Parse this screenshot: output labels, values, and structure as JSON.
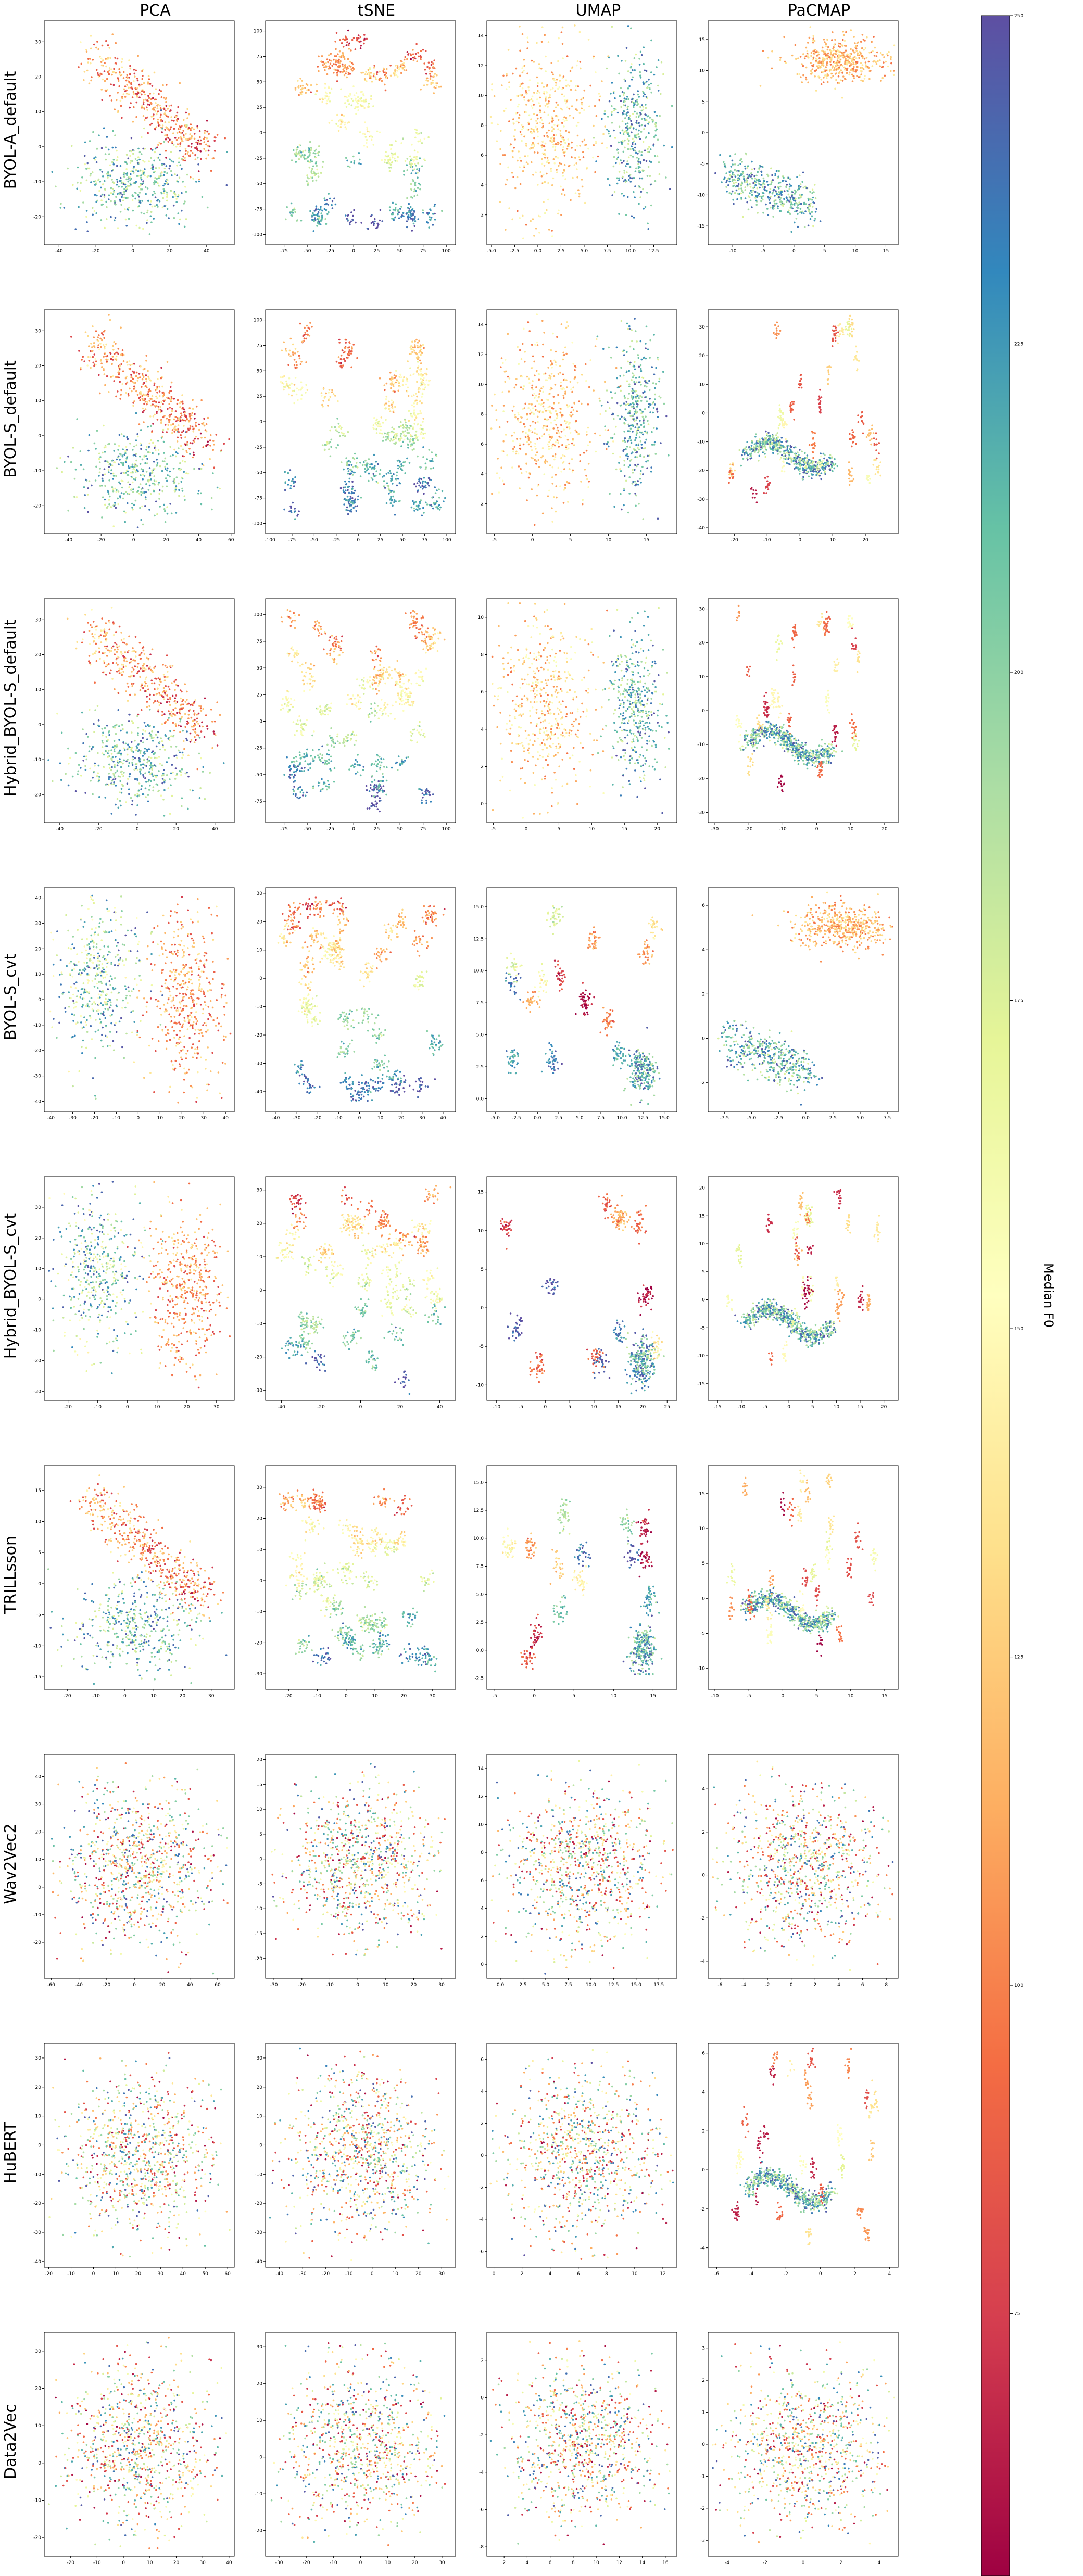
{
  "figure": {
    "column_titles": [
      "PCA",
      "tSNE",
      "UMAP",
      "PaCMAP"
    ],
    "row_labels": [
      "BYOL-A_default",
      "BYOL-S_default",
      "Hybrid_BYOL-S_default",
      "BYOL-S_cvt",
      "Hybrid_BYOL-S_cvt",
      "TRILLsson",
      "Wav2Vec2",
      "HuBERT",
      "Data2Vec"
    ],
    "colorbar": {
      "label": "Median F0",
      "ticks": [
        "250",
        "225",
        "200",
        "175",
        "150",
        "125",
        "100",
        "75"
      ],
      "tick_values": [
        250,
        225,
        200,
        175,
        150,
        125,
        100,
        75
      ],
      "range": [
        55,
        250
      ],
      "colormap": "Spectral",
      "stops": [
        "#9e0142",
        "#d53e4f",
        "#f46d43",
        "#fdae61",
        "#fee08b",
        "#ffffbf",
        "#e6f598",
        "#abdda4",
        "#66c2a5",
        "#3288bd",
        "#5e4fa2"
      ]
    }
  },
  "chart_data": [
    {
      "type": "scatter",
      "method": "PCA",
      "model": "BYOL-A_default",
      "xticks": [
        "-40",
        "-20",
        "0",
        "20",
        "40"
      ],
      "yticks": [
        "30",
        "20",
        "10",
        "0",
        "-10",
        "-20"
      ],
      "xlim": [
        -48,
        55
      ],
      "ylim": [
        -28,
        36
      ],
      "shape": "wedge"
    },
    {
      "type": "scatter",
      "method": "tSNE",
      "model": "BYOL-A_default",
      "xticks": [
        "-75",
        "-50",
        "-25",
        "0",
        "25",
        "50",
        "75",
        "100"
      ],
      "yticks": [
        "100",
        "75",
        "50",
        "25",
        "0",
        "-25",
        "-50",
        "-75",
        "-100"
      ],
      "xlim": [
        -95,
        110
      ],
      "ylim": [
        -110,
        110
      ],
      "shape": "tsne"
    },
    {
      "type": "scatter",
      "method": "UMAP",
      "model": "BYOL-A_default",
      "xticks": [
        "-5.0",
        "-2.5",
        "0.0",
        "2.5",
        "5.0",
        "7.5",
        "10.0",
        "12.5"
      ],
      "yticks": [
        "14",
        "12",
        "10",
        "8",
        "6",
        "4",
        "2"
      ],
      "xlim": [
        -5.5,
        15
      ],
      "ylim": [
        0,
        15
      ],
      "shape": "umap_split"
    },
    {
      "type": "scatter",
      "method": "PaCMAP",
      "model": "BYOL-A_default",
      "xticks": [
        "-10",
        "-5",
        "0",
        "5",
        "10",
        "15"
      ],
      "yticks": [
        "15",
        "10",
        "5",
        "0",
        "-5",
        "-10",
        "-15"
      ],
      "xlim": [
        -14,
        17
      ],
      "ylim": [
        -18,
        18
      ],
      "shape": "pac_two"
    },
    {
      "type": "scatter",
      "method": "PCA",
      "model": "BYOL-S_default",
      "xticks": [
        "-40",
        "-20",
        "0",
        "20",
        "40",
        "60"
      ],
      "yticks": [
        "30",
        "20",
        "10",
        "0",
        "-10",
        "-20"
      ],
      "xlim": [
        -55,
        62
      ],
      "ylim": [
        -28,
        36
      ],
      "shape": "wedge"
    },
    {
      "type": "scatter",
      "method": "tSNE",
      "model": "BYOL-S_default",
      "xticks": [
        "-100",
        "-75",
        "-50",
        "-25",
        "0",
        "25",
        "50",
        "75",
        "100"
      ],
      "yticks": [
        "100",
        "75",
        "50",
        "25",
        "0",
        "-25",
        "-50",
        "-75",
        "-100"
      ],
      "xlim": [
        -105,
        110
      ],
      "ylim": [
        -110,
        110
      ],
      "shape": "tsne"
    },
    {
      "type": "scatter",
      "method": "UMAP",
      "model": "BYOL-S_default",
      "xticks": [
        "-5",
        "0",
        "5",
        "10",
        "15"
      ],
      "yticks": [
        "14",
        "12",
        "10",
        "8",
        "6",
        "4",
        "2"
      ],
      "xlim": [
        -6,
        19
      ],
      "ylim": [
        0,
        15
      ],
      "shape": "umap_split"
    },
    {
      "type": "scatter",
      "method": "PaCMAP",
      "model": "BYOL-S_default",
      "xticks": [
        "-20",
        "-10",
        "0",
        "10",
        "20"
      ],
      "yticks": [
        "30",
        "20",
        "10",
        "0",
        "-10",
        "-20",
        "-30",
        "-40"
      ],
      "xlim": [
        -28,
        30
      ],
      "ylim": [
        -42,
        36
      ],
      "shape": "pac_scatter"
    },
    {
      "type": "scatter",
      "method": "PCA",
      "model": "Hybrid_BYOL-S_default",
      "xticks": [
        "-40",
        "-20",
        "0",
        "20",
        "40"
      ],
      "yticks": [
        "30",
        "20",
        "10",
        "0",
        "-10",
        "-20"
      ],
      "xlim": [
        -48,
        50
      ],
      "ylim": [
        -28,
        36
      ],
      "shape": "wedge"
    },
    {
      "type": "scatter",
      "method": "tSNE",
      "model": "Hybrid_BYOL-S_default",
      "xticks": [
        "-75",
        "-50",
        "-25",
        "0",
        "25",
        "50",
        "75",
        "100"
      ],
      "yticks": [
        "100",
        "75",
        "50",
        "25",
        "0",
        "-25",
        "-50",
        "-75"
      ],
      "xlim": [
        -95,
        110
      ],
      "ylim": [
        -95,
        115
      ],
      "shape": "tsne"
    },
    {
      "type": "scatter",
      "method": "UMAP",
      "model": "Hybrid_BYOL-S_default",
      "xticks": [
        "-5",
        "0",
        "5",
        "10",
        "15",
        "20"
      ],
      "yticks": [
        "10",
        "8",
        "6",
        "4",
        "2",
        "0"
      ],
      "xlim": [
        -6,
        23
      ],
      "ylim": [
        -1,
        11
      ],
      "shape": "umap_split"
    },
    {
      "type": "scatter",
      "method": "PaCMAP",
      "model": "Hybrid_BYOL-S_default",
      "xticks": [
        "-30",
        "-20",
        "-10",
        "0",
        "10",
        "20"
      ],
      "yticks": [
        "30",
        "20",
        "10",
        "0",
        "-10",
        "-20",
        "-30"
      ],
      "xlim": [
        -32,
        24
      ],
      "ylim": [
        -33,
        33
      ],
      "shape": "pac_scatter"
    },
    {
      "type": "scatter",
      "method": "PCA",
      "model": "BYOL-S_cvt",
      "xticks": [
        "-40",
        "-30",
        "-20",
        "-10",
        "0",
        "10",
        "20",
        "30",
        "40"
      ],
      "yticks": [
        "40",
        "30",
        "20",
        "10",
        "0",
        "-10",
        "-20",
        "-30",
        "-40"
      ],
      "xlim": [
        -43,
        44
      ],
      "ylim": [
        -44,
        44
      ],
      "shape": "twin"
    },
    {
      "type": "scatter",
      "method": "tSNE",
      "model": "BYOL-S_cvt",
      "xticks": [
        "-40",
        "-30",
        "-20",
        "-10",
        "0",
        "10",
        "20",
        "30",
        "40"
      ],
      "yticks": [
        "30",
        "20",
        "10",
        "0",
        "-10",
        "-20",
        "-30",
        "-40"
      ],
      "xlim": [
        -45,
        46
      ],
      "ylim": [
        -47,
        32
      ],
      "shape": "tsne"
    },
    {
      "type": "scatter",
      "method": "UMAP",
      "model": "BYOL-S_cvt",
      "xticks": [
        "-5.0",
        "-2.5",
        "0.0",
        "2.5",
        "5.0",
        "7.5",
        "10.0",
        "12.5",
        "15.0"
      ],
      "yticks": [
        "15.0",
        "12.5",
        "10.0",
        "7.5",
        "5.0",
        "2.5",
        "0.0"
      ],
      "xlim": [
        -6,
        16.5
      ],
      "ylim": [
        -1,
        16.5
      ],
      "shape": "umap_sparse"
    },
    {
      "type": "scatter",
      "method": "PaCMAP",
      "model": "BYOL-S_cvt",
      "xticks": [
        "-7.5",
        "-5.0",
        "-2.5",
        "0.0",
        "2.5",
        "5.0",
        "7.5"
      ],
      "yticks": [
        "6",
        "4",
        "2",
        "0",
        "-2"
      ],
      "xlim": [
        -9,
        8.5
      ],
      "ylim": [
        -3.3,
        6.8
      ],
      "shape": "pac_two"
    },
    {
      "type": "scatter",
      "method": "PCA",
      "model": "Hybrid_BYOL-S_cvt",
      "xticks": [
        "-20",
        "-10",
        "0",
        "10",
        "20",
        "30"
      ],
      "yticks": [
        "30",
        "20",
        "10",
        "0",
        "-10",
        "-20",
        "-30"
      ],
      "xlim": [
        -28,
        36
      ],
      "ylim": [
        -33,
        40
      ],
      "shape": "twin"
    },
    {
      "type": "scatter",
      "method": "tSNE",
      "model": "Hybrid_BYOL-S_cvt",
      "xticks": [
        "-40",
        "-20",
        "0",
        "20",
        "40"
      ],
      "yticks": [
        "30",
        "20",
        "10",
        "0",
        "-10",
        "-20",
        "-30"
      ],
      "xlim": [
        -48,
        48
      ],
      "ylim": [
        -33,
        34
      ],
      "shape": "tsne"
    },
    {
      "type": "scatter",
      "method": "UMAP",
      "model": "Hybrid_BYOL-S_cvt",
      "xticks": [
        "-10",
        "-5",
        "0",
        "5",
        "10",
        "15",
        "20",
        "25"
      ],
      "yticks": [
        "15",
        "10",
        "5",
        "0",
        "-5",
        "-10"
      ],
      "xlim": [
        -12,
        27
      ],
      "ylim": [
        -12,
        17
      ],
      "shape": "umap_sparse"
    },
    {
      "type": "scatter",
      "method": "PaCMAP",
      "model": "Hybrid_BYOL-S_cvt",
      "xticks": [
        "-15",
        "-10",
        "-5",
        "0",
        "5",
        "10",
        "15",
        "20"
      ],
      "yticks": [
        "20",
        "15",
        "10",
        "5",
        "0",
        "-5",
        "-10",
        "-15"
      ],
      "xlim": [
        -17,
        23
      ],
      "ylim": [
        -18,
        22
      ],
      "shape": "pac_scatter"
    },
    {
      "type": "scatter",
      "method": "PCA",
      "model": "TRILLsson",
      "xticks": [
        "-20",
        "-10",
        "0",
        "10",
        "20",
        "30"
      ],
      "yticks": [
        "15",
        "10",
        "5",
        "0",
        "-5",
        "-10",
        "-15"
      ],
      "xlim": [
        -28,
        38
      ],
      "ylim": [
        -17,
        19
      ],
      "shape": "wedge"
    },
    {
      "type": "scatter",
      "method": "tSNE",
      "model": "TRILLsson",
      "xticks": [
        "-20",
        "-10",
        "0",
        "10",
        "20",
        "30"
      ],
      "yticks": [
        "30",
        "20",
        "10",
        "0",
        "-10",
        "-20",
        "-30"
      ],
      "xlim": [
        -28,
        38
      ],
      "ylim": [
        -35,
        37
      ],
      "shape": "tsne"
    },
    {
      "type": "scatter",
      "method": "UMAP",
      "model": "TRILLsson",
      "xticks": [
        "-5",
        "0",
        "5",
        "10",
        "15"
      ],
      "yticks": [
        "15.0",
        "12.5",
        "10.0",
        "7.5",
        "5.0",
        "2.5",
        "0.0",
        "-2.5"
      ],
      "xlim": [
        -6,
        18
      ],
      "ylim": [
        -3.5,
        16.5
      ],
      "shape": "umap_sparse"
    },
    {
      "type": "scatter",
      "method": "PaCMAP",
      "model": "TRILLsson",
      "xticks": [
        "-10",
        "-5",
        "0",
        "5",
        "10",
        "15"
      ],
      "yticks": [
        "15",
        "10",
        "5",
        "0",
        "-5",
        "-10"
      ],
      "xlim": [
        -11,
        17
      ],
      "ylim": [
        -13,
        19
      ],
      "shape": "pac_scatter"
    },
    {
      "type": "scatter",
      "method": "PCA",
      "model": "Wav2Vec2",
      "xticks": [
        "-60",
        "-40",
        "-20",
        "0",
        "20",
        "40",
        "60"
      ],
      "yticks": [
        "40",
        "30",
        "20",
        "10",
        "0",
        "-10",
        "-20"
      ],
      "xlim": [
        -65,
        72
      ],
      "ylim": [
        -33,
        48
      ],
      "shape": "blob"
    },
    {
      "type": "scatter",
      "method": "tSNE",
      "model": "Wav2Vec2",
      "xticks": [
        "-30",
        "-20",
        "-10",
        "0",
        "10",
        "20",
        "30"
      ],
      "yticks": [
        "20",
        "15",
        "10",
        "5",
        "0",
        "-5",
        "-10",
        "-15",
        "-20"
      ],
      "xlim": [
        -33,
        35
      ],
      "ylim": [
        -24,
        21
      ],
      "shape": "blob"
    },
    {
      "type": "scatter",
      "method": "UMAP",
      "model": "Wav2Vec2",
      "xticks": [
        "0.0",
        "2.5",
        "5.0",
        "7.5",
        "10.0",
        "12.5",
        "15.0",
        "17.5"
      ],
      "yticks": [
        "14",
        "12",
        "10",
        "8",
        "6",
        "4",
        "2",
        "0"
      ],
      "xlim": [
        -1.5,
        19.5
      ],
      "ylim": [
        -1,
        15
      ],
      "shape": "blob"
    },
    {
      "type": "scatter",
      "method": "PaCMAP",
      "model": "Wav2Vec2",
      "xticks": [
        "-6",
        "-4",
        "-2",
        "0",
        "2",
        "4",
        "6",
        "8"
      ],
      "yticks": [
        "4",
        "2",
        "0",
        "-2",
        "-4"
      ],
      "xlim": [
        -7,
        9
      ],
      "ylim": [
        -4.8,
        5.6
      ],
      "shape": "blob"
    },
    {
      "type": "scatter",
      "method": "PCA",
      "model": "HuBERT",
      "xticks": [
        "-20",
        "-10",
        "0",
        "10",
        "20",
        "30",
        "40",
        "50",
        "60"
      ],
      "yticks": [
        "30",
        "20",
        "10",
        "0",
        "-10",
        "-20",
        "-30",
        "-40"
      ],
      "xlim": [
        -22,
        63
      ],
      "ylim": [
        -42,
        35
      ],
      "shape": "blob"
    },
    {
      "type": "scatter",
      "method": "tSNE",
      "model": "HuBERT",
      "xticks": [
        "-40",
        "-30",
        "-20",
        "-10",
        "0",
        "10",
        "20",
        "30"
      ],
      "yticks": [
        "30",
        "20",
        "10",
        "0",
        "-10",
        "-20",
        "-30",
        "-40"
      ],
      "xlim": [
        -46,
        36
      ],
      "ylim": [
        -42,
        35
      ],
      "shape": "blob"
    },
    {
      "type": "scatter",
      "method": "UMAP",
      "model": "HuBERT",
      "xticks": [
        "0",
        "2",
        "4",
        "6",
        "8",
        "10",
        "12"
      ],
      "yticks": [
        "6",
        "4",
        "2",
        "0",
        "-2",
        "-4",
        "-6"
      ],
      "xlim": [
        -0.5,
        13
      ],
      "ylim": [
        -7,
        7
      ],
      "shape": "blob"
    },
    {
      "type": "scatter",
      "method": "PaCMAP",
      "model": "HuBERT",
      "xticks": [
        "-6",
        "-4",
        "-2",
        "0",
        "2",
        "4"
      ],
      "yticks": [
        "6",
        "4",
        "2",
        "0",
        "-2",
        "-4"
      ],
      "xlim": [
        -6.5,
        4.5
      ],
      "ylim": [
        -5,
        6.5
      ],
      "shape": "pac_scatter"
    },
    {
      "type": "scatter",
      "method": "PCA",
      "model": "Data2Vec",
      "xticks": [
        "-20",
        "-10",
        "0",
        "10",
        "20",
        "30",
        "40"
      ],
      "yticks": [
        "30",
        "20",
        "10",
        "0",
        "-10",
        "-20"
      ],
      "xlim": [
        -30,
        42
      ],
      "ylim": [
        -25,
        35
      ],
      "shape": "blob"
    },
    {
      "type": "scatter",
      "method": "tSNE",
      "model": "Data2Vec",
      "xticks": [
        "-30",
        "-20",
        "-10",
        "0",
        "10",
        "20",
        "30"
      ],
      "yticks": [
        "30",
        "20",
        "10",
        "0",
        "-10",
        "-20"
      ],
      "xlim": [
        -35,
        35
      ],
      "ylim": [
        -27,
        34
      ],
      "shape": "blob"
    },
    {
      "type": "scatter",
      "method": "UMAP",
      "model": "Data2Vec",
      "xticks": [
        "2",
        "4",
        "6",
        "8",
        "10",
        "12",
        "14",
        "16"
      ],
      "yticks": [
        "2",
        "0",
        "-2",
        "-4",
        "-6",
        "-8"
      ],
      "xlim": [
        0.5,
        17
      ],
      "ylim": [
        -8.5,
        3.5
      ],
      "shape": "blob"
    },
    {
      "type": "scatter",
      "method": "PaCMAP",
      "model": "Data2Vec",
      "xticks": [
        "-4",
        "-2",
        "0",
        "2",
        "4"
      ],
      "yticks": [
        "3",
        "2",
        "1",
        "0",
        "-1",
        "-2",
        "-3"
      ],
      "xlim": [
        -5,
        5
      ],
      "ylim": [
        -3.5,
        3.5
      ],
      "shape": "blob"
    }
  ]
}
